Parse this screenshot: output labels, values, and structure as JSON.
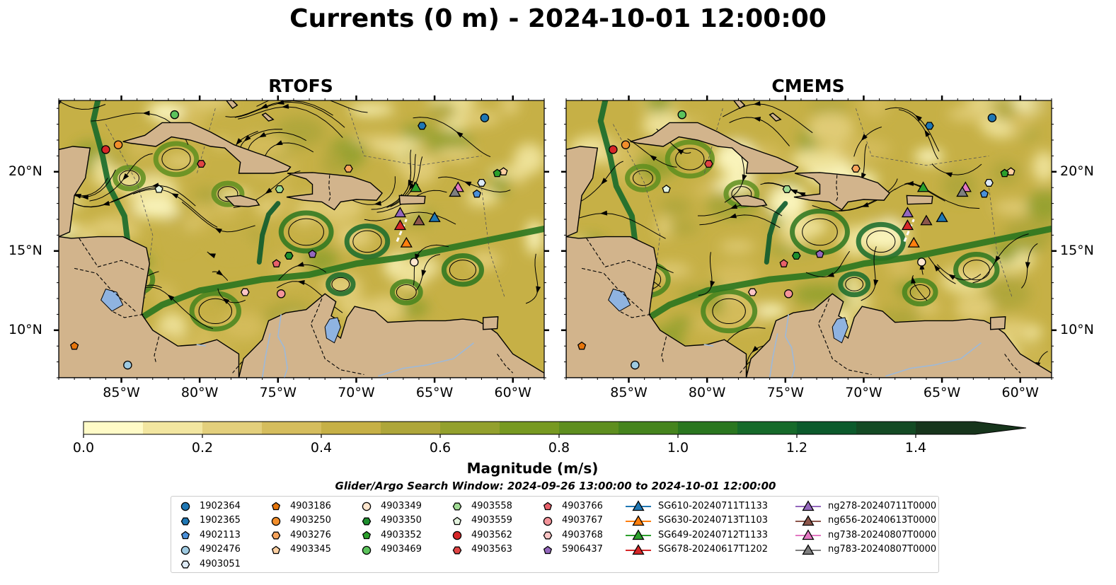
{
  "title": "Currents (0 m) - 2024-10-01 12:00:00",
  "panels": [
    {
      "name": "rtofs",
      "title": "RTOFS"
    },
    {
      "name": "cmems",
      "title": "CMEMS"
    }
  ],
  "map": {
    "lon_range": [
      -89,
      -58
    ],
    "lat_range": [
      7,
      24.5
    ],
    "lon_ticks": [
      -85,
      -80,
      -75,
      -70,
      -65,
      -60
    ],
    "lon_tick_labels": [
      "85°W",
      "80°W",
      "75°W",
      "70°W",
      "65°W",
      "60°W"
    ],
    "lat_ticks": [
      10,
      15,
      20
    ],
    "lat_tick_labels": [
      "10°N",
      "15°N",
      "20°N"
    ],
    "land_color": "#d2b48c",
    "ocean_shading": "speed magnitude, yellow to dark green",
    "overlays": [
      "streamlines",
      "depth contours",
      "country borders"
    ]
  },
  "colorbar": {
    "label": "Magnitude (m/s)",
    "min": 0.0,
    "max": 1.5,
    "extend": "max",
    "tick_values": [
      0.0,
      0.2,
      0.4,
      0.6,
      0.8,
      1.0,
      1.2,
      1.4
    ],
    "tick_labels": [
      "0.0",
      "0.2",
      "0.4",
      "0.6",
      "0.8",
      "1.0",
      "1.2",
      "1.4"
    ],
    "colors": [
      "#fffbc7",
      "#f2e6a0",
      "#e3cf7c",
      "#d5bd5d",
      "#c6b046",
      "#aea63a",
      "#93a02d",
      "#779921",
      "#5e8e1f",
      "#45841d",
      "#2a761f",
      "#166a2a",
      "#0c5a2c",
      "#144a24",
      "#17351c"
    ]
  },
  "search_window": "Glider/Argo Search Window: 2024-09-26 13:00:00 to 2024-10-01 12:00:00",
  "legend": {
    "columns": [
      [
        {
          "label": "1902364",
          "marker": "circle",
          "color": "#1f77b4"
        },
        {
          "label": "1902365",
          "marker": "hexagon",
          "color": "#1f77b4"
        },
        {
          "label": "4902113",
          "marker": "pentagon",
          "color": "#4a90d9"
        },
        {
          "label": "4902476",
          "marker": "circle",
          "color": "#9ecae1"
        },
        {
          "label": "4903051",
          "marker": "hexagon",
          "color": "#deebf7"
        }
      ],
      [
        {
          "label": "4903186",
          "marker": "pentagon",
          "color": "#e6750b"
        },
        {
          "label": "4903250",
          "marker": "circle",
          "color": "#f28e2b"
        },
        {
          "label": "4903276",
          "marker": "hexagon",
          "color": "#f7a45c"
        },
        {
          "label": "4903345",
          "marker": "pentagon",
          "color": "#fdd0a2"
        }
      ],
      [
        {
          "label": "4903349",
          "marker": "circle",
          "color": "#fee6ce"
        },
        {
          "label": "4903350",
          "marker": "hexagon",
          "color": "#1e8f2e"
        },
        {
          "label": "4903352",
          "marker": "pentagon",
          "color": "#2ca02c"
        },
        {
          "label": "4903469",
          "marker": "circle",
          "color": "#5cc35c"
        }
      ],
      [
        {
          "label": "4903558",
          "marker": "hexagon",
          "color": "#a1dc95"
        },
        {
          "label": "4903559",
          "marker": "pentagon",
          "color": "#e5f5e0"
        },
        {
          "label": "4903562",
          "marker": "circle",
          "color": "#d62728"
        },
        {
          "label": "4903563",
          "marker": "hexagon",
          "color": "#e04444"
        }
      ],
      [
        {
          "label": "4903766",
          "marker": "pentagon",
          "color": "#e8606a"
        },
        {
          "label": "4903767",
          "marker": "circle",
          "color": "#f4949a"
        },
        {
          "label": "4903768",
          "marker": "hexagon",
          "color": "#fcc5c5"
        },
        {
          "label": "5906437",
          "marker": "pentagon",
          "color": "#9467bd"
        }
      ],
      [
        {
          "label": "SG610-20240711T1133",
          "marker": "triangle",
          "color": "#1f77b4"
        },
        {
          "label": "SG630-20240713T1103",
          "marker": "triangle",
          "color": "#ff7f0e"
        },
        {
          "label": "SG649-20240712T1133",
          "marker": "triangle",
          "color": "#2ca02c"
        },
        {
          "label": "SG678-20240617T1202",
          "marker": "triangle",
          "color": "#d62728"
        }
      ],
      [
        {
          "label": "ng278-20240711T0000",
          "marker": "triangle",
          "color": "#9467bd"
        },
        {
          "label": "ng656-20240613T0000",
          "marker": "triangle",
          "color": "#8c564b"
        },
        {
          "label": "ng738-20240807T0000",
          "marker": "triangle",
          "color": "#e377c2"
        },
        {
          "label": "ng783-20240807T0000",
          "marker": "triangle",
          "color": "#7f7f7f"
        }
      ]
    ]
  },
  "observations": [
    {
      "id": "1902364",
      "marker": "circle",
      "color": "#1f77b4",
      "lon": -61.8,
      "lat": 23.4
    },
    {
      "id": "1902365",
      "marker": "hexagon",
      "color": "#1f77b4",
      "lon": -65.8,
      "lat": 22.9
    },
    {
      "id": "4902113",
      "marker": "pentagon",
      "color": "#4a90d9",
      "lon": -62.3,
      "lat": 18.6
    },
    {
      "id": "4902476",
      "marker": "circle",
      "color": "#9ecae1",
      "lon": -84.6,
      "lat": 7.8
    },
    {
      "id": "4903051",
      "marker": "hexagon",
      "color": "#deebf7",
      "lon": -62.0,
      "lat": 19.3
    },
    {
      "id": "4903186",
      "marker": "pentagon",
      "color": "#e6750b",
      "lon": -88.0,
      "lat": 9.0
    },
    {
      "id": "4903250",
      "marker": "circle",
      "color": "#f28e2b",
      "lon": -85.2,
      "lat": 21.7
    },
    {
      "id": "4903276",
      "marker": "hexagon",
      "color": "#f7a45c",
      "lon": -70.5,
      "lat": 20.2
    },
    {
      "id": "4903345",
      "marker": "pentagon",
      "color": "#fdd0a2",
      "lon": -60.6,
      "lat": 20.0
    },
    {
      "id": "4903349",
      "marker": "circle",
      "color": "#fee6ce",
      "lon": -66.3,
      "lat": 14.3
    },
    {
      "id": "4903350",
      "marker": "hexagon",
      "color": "#1e8f2e",
      "lon": -74.3,
      "lat": 14.7
    },
    {
      "id": "4903352",
      "marker": "pentagon",
      "color": "#2ca02c",
      "lon": -61.0,
      "lat": 19.9
    },
    {
      "id": "4903469",
      "marker": "circle",
      "color": "#5cc35c",
      "lon": -81.6,
      "lat": 23.6
    },
    {
      "id": "4903558",
      "marker": "hexagon",
      "color": "#a1dc95",
      "lon": -74.9,
      "lat": 18.9
    },
    {
      "id": "4903559",
      "marker": "pentagon",
      "color": "#e5f5e0",
      "lon": -82.6,
      "lat": 18.9
    },
    {
      "id": "4903562",
      "marker": "circle",
      "color": "#d62728",
      "lon": -86.0,
      "lat": 21.4
    },
    {
      "id": "4903563",
      "marker": "hexagon",
      "color": "#e04444",
      "lon": -79.9,
      "lat": 20.5
    },
    {
      "id": "4903766",
      "marker": "pentagon",
      "color": "#e8606a",
      "lon": -75.1,
      "lat": 14.2
    },
    {
      "id": "4903767",
      "marker": "circle",
      "color": "#f4949a",
      "lon": -74.8,
      "lat": 12.3
    },
    {
      "id": "4903768",
      "marker": "hexagon",
      "color": "#fcc5c5",
      "lon": -77.1,
      "lat": 12.4
    },
    {
      "id": "5906437",
      "marker": "pentagon",
      "color": "#9467bd",
      "lon": -72.8,
      "lat": 14.8
    },
    {
      "id": "SG610-20240711T1133",
      "marker": "triangle",
      "color": "#1f77b4",
      "lon": -65.0,
      "lat": 17.1
    },
    {
      "id": "SG630-20240713T1103",
      "marker": "triangle",
      "color": "#ff7f0e",
      "lon": -66.8,
      "lat": 15.5
    },
    {
      "id": "SG649-20240712T1133",
      "marker": "triangle",
      "color": "#2ca02c",
      "lon": -66.2,
      "lat": 19.0
    },
    {
      "id": "SG678-20240617T1202",
      "marker": "triangle",
      "color": "#d62728",
      "lon": -67.2,
      "lat": 16.6
    },
    {
      "id": "ng278-20240711T0000",
      "marker": "triangle",
      "color": "#9467bd",
      "lon": -67.2,
      "lat": 17.4
    },
    {
      "id": "ng656-20240613T0000",
      "marker": "triangle",
      "color": "#8c564b",
      "lon": -66.0,
      "lat": 16.9
    },
    {
      "id": "ng738-20240807T0000",
      "marker": "triangle",
      "color": "#e377c2",
      "lon": -63.5,
      "lat": 19.0
    },
    {
      "id": "ng783-20240807T0000",
      "marker": "triangle",
      "color": "#7f7f7f",
      "lon": -63.7,
      "lat": 18.7
    }
  ]
}
